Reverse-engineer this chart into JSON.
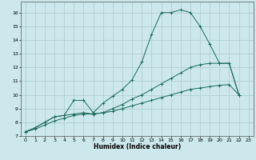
{
  "background_color": "#cce8ec",
  "grid_color": "#aacccc",
  "line_color": "#1a6b5a",
  "xlabel": "Humidex (Indice chaleur)",
  "xlim": [
    -0.5,
    23.5
  ],
  "ylim": [
    7,
    16.8
  ],
  "xticks": [
    0,
    1,
    2,
    3,
    4,
    5,
    6,
    7,
    8,
    9,
    10,
    11,
    12,
    13,
    14,
    15,
    16,
    17,
    18,
    19,
    20,
    21,
    22,
    23
  ],
  "yticks": [
    7,
    8,
    9,
    10,
    11,
    12,
    13,
    14,
    15,
    16
  ],
  "series": [
    {
      "x": [
        0,
        1,
        2,
        3,
        4,
        5,
        6,
        7,
        8,
        9,
        10,
        11,
        12,
        13,
        14,
        15,
        16,
        17,
        18,
        19,
        20,
        21,
        22
      ],
      "y": [
        7.3,
        7.6,
        8.0,
        8.4,
        8.5,
        9.6,
        9.6,
        8.7,
        9.4,
        9.9,
        10.4,
        11.1,
        12.4,
        14.4,
        16.0,
        16.0,
        16.2,
        16.0,
        15.0,
        13.7,
        12.3,
        12.3,
        10.0
      ]
    },
    {
      "x": [
        0,
        1,
        2,
        3,
        4,
        5,
        6,
        7,
        8,
        9,
        10,
        11,
        12,
        13,
        14,
        15,
        16,
        17,
        18,
        19,
        20,
        21,
        22
      ],
      "y": [
        7.3,
        7.6,
        8.0,
        8.4,
        8.5,
        8.6,
        8.7,
        8.6,
        8.7,
        9.0,
        9.3,
        9.7,
        10.0,
        10.4,
        10.8,
        11.2,
        11.6,
        12.0,
        12.2,
        12.3,
        12.3,
        12.3,
        10.0
      ]
    },
    {
      "x": [
        0,
        1,
        2,
        3,
        4,
        5,
        6,
        7,
        8,
        9,
        10,
        11,
        12,
        13,
        14,
        15,
        16,
        17,
        18,
        19,
        20,
        21,
        22
      ],
      "y": [
        7.3,
        7.5,
        7.8,
        8.1,
        8.3,
        8.5,
        8.6,
        8.6,
        8.7,
        8.8,
        9.0,
        9.2,
        9.4,
        9.6,
        9.8,
        10.0,
        10.2,
        10.4,
        10.5,
        10.6,
        10.7,
        10.75,
        10.0
      ]
    }
  ]
}
